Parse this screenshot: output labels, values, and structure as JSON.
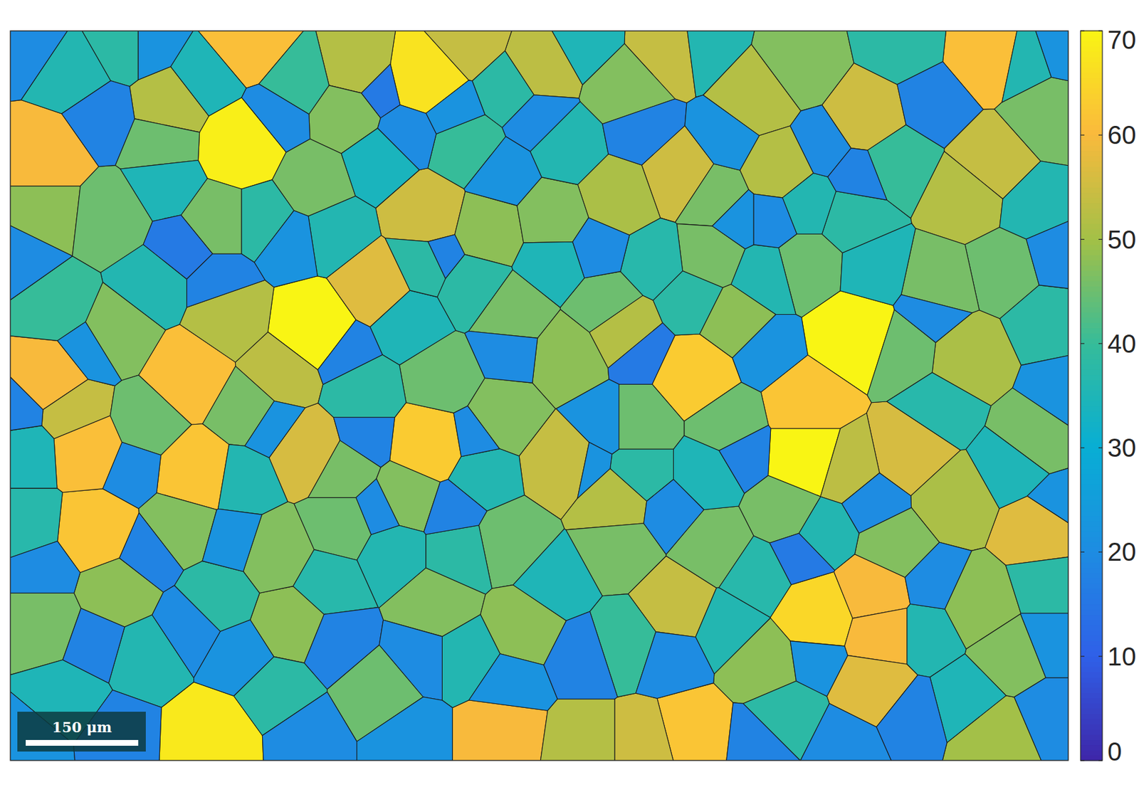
{
  "chart_data": {
    "type": "grain_map",
    "xlim": [
      0,
      1410
    ],
    "ylim": [
      0,
      972
    ],
    "tick_labels": false,
    "colorbar": {
      "range": [
        0,
        70
      ],
      "ticks": [
        0,
        10,
        20,
        30,
        40,
        50,
        60,
        70
      ]
    },
    "scale_bar": {
      "length": 150,
      "label": "150 μm"
    },
    "grains": {
      "x": [
        307,
        404,
        1126,
        1063,
        554,
        268,
        321,
        45,
        1306,
        239,
        113,
        248,
        1078,
        1150,
        1160,
        103,
        913,
        1063,
        656,
        908,
        1374,
        559,
        54,
        1150,
        554,
        486,
        399,
        738,
        1199,
        1141,
        1311,
        893,
        709,
        995,
        888,
        1111,
        816,
        360,
        83,
        292,
        811,
        850,
        762,
        462,
        607,
        879,
        1024,
        1276,
        1257,
        1276,
        214,
        1315,
        806,
        447,
        204,
        45,
        404,
        636,
        796,
        743,
        670,
        820,
        1189,
        1005,
        568,
        666,
        811,
        374,
        442,
        1179,
        1291,
        1383,
        1053,
        1325,
        937,
        656,
        578,
        932,
        966,
        1063,
        142,
        45,
        142,
        229,
        180,
        316,
        530,
        132,
        277,
        723,
        956,
        1364,
        1335,
        491,
        1238,
        685,
        840,
        1034,
        355,
        442,
        937,
        83,
        151,
        258,
        384,
        665,
        743,
        607,
        491,
        336,
        190,
        64,
        210,
        433,
        617,
        530,
        859,
        1005,
        1121,
        1180,
        1364,
        1383,
        1238,
        1335,
        1383,
        1218,
        1276,
        1034,
        956,
        821,
        724,
        598,
        510,
        423,
        277,
        180,
        74,
        355,
        607,
        995,
        927,
        840,
        627,
        471,
        307,
        25,
        25,
        1150,
        1344,
        1189,
        918,
        762,
        1083,
        908,
        1063,
        549,
        724,
        25,
        122,
        180,
        355,
        491,
        588,
        704,
        840,
        956,
        1083,
        1228,
        1403,
        16,
        229,
        374,
        568,
        782,
        966,
        1131,
        1393,
        103,
        442,
        665,
        840,
        1005,
        1228,
        16,
        161,
        345,
        471,
        617,
        792,
        976,
        1150,
        1403,
        45,
        180,
        297,
        491,
        588,
        762,
        879,
        1053,
        1228,
        1393,
        113,
        239,
        307,
        433,
        549,
        665,
        762,
        879,
        1073,
        1199,
        1383,
        25,
        142,
        394,
        530,
        995,
        1111,
        1383,
        1015,
        277,
        530,
        656
      ],
      "y": [
        153,
        396,
        405,
        566,
        61,
        944,
        13,
        168,
        29,
        459,
        667,
        590,
        779,
        750,
        803,
        556,
        459,
        498,
        939,
        939,
        667,
        551,
        464,
        871,
        245,
        338,
        561,
        575,
        561,
        114,
        178,
        192,
        47,
        90,
        764,
        580,
        396,
        454,
        507,
        381,
        221,
        954,
        954,
        47,
        13,
        22,
        182,
        221,
        624,
        435,
        100,
        939,
        628,
        110,
        148,
        240,
        202,
        265,
        367,
        434,
        376,
        76,
        425,
        842,
        764,
        682,
        687,
        789,
        585,
        687,
        764,
        114,
        47,
        318,
        221,
        512,
        464,
        299,
        386,
        313,
        401,
        789,
        745,
        658,
        522,
        503,
        619,
        250,
        250,
        250,
        522,
        541,
        832,
        881,
        337,
        793,
        522,
        638,
        696,
        658,
        687,
        56,
        17,
        66,
        66,
        76,
        153,
        153,
        173,
        250,
        338,
        367,
        202,
        270,
        338,
        386,
        308,
        328,
        250,
        173,
        231,
        386,
        502,
        580,
        735,
        803,
        890,
        910,
        793,
        813,
        735,
        696,
        696,
        735,
        755,
        832,
        890,
        881,
        832,
        726,
        590,
        590,
        590,
        483,
        600,
        658,
        561,
        318,
        37,
        17,
        17,
        17,
        667,
        357,
        231,
        308,
        308,
        17,
        114,
        17,
        114,
        76,
        105,
        114,
        134,
        144,
        153,
        95,
        17,
        299,
        289,
        279,
        299,
        289,
        250,
        192,
        299,
        425,
        425,
        425,
        425,
        425,
        376,
        502,
        580,
        522,
        541,
        541,
        522,
        561,
        628,
        483,
        716,
        696,
        677,
        638,
        638,
        580,
        638,
        696,
        735,
        638,
        813,
        793,
        832,
        813,
        832,
        871,
        832,
        832,
        832,
        910,
        910,
        949,
        939,
        939,
        939,
        949,
        949,
        813,
        250,
        338,
        134,
        192
      ],
      "values": [
        69,
        70,
        70,
        70,
        67,
        68,
        61,
        60,
        61,
        61,
        62,
        62,
        65,
        60,
        60,
        61,
        63,
        62,
        60,
        62,
        57,
        63,
        60,
        57,
        55,
        57,
        56,
        54,
        56,
        55,
        54,
        55,
        53,
        52,
        54,
        53,
        52,
        53,
        54,
        52,
        51,
        55,
        52,
        52,
        54,
        54,
        52,
        52,
        51,
        51,
        52,
        50,
        52,
        47,
        45,
        48,
        46,
        48,
        45,
        48,
        46,
        47,
        45,
        48,
        47,
        45,
        46,
        48,
        46,
        47,
        48,
        46,
        47,
        45,
        46,
        47,
        45,
        46,
        48,
        45,
        47,
        46,
        48,
        47,
        45,
        46,
        47,
        45,
        46,
        47,
        45,
        46,
        47,
        45,
        46,
        48,
        45,
        46,
        47,
        45,
        46,
        36,
        38,
        35,
        40,
        38,
        36,
        40,
        34,
        38,
        36,
        40,
        35,
        36,
        38,
        35,
        37,
        36,
        38,
        40,
        36,
        38,
        37,
        35,
        38,
        36,
        35,
        38,
        36,
        40,
        35,
        38,
        36,
        37,
        38,
        36,
        35,
        38,
        36,
        37,
        35,
        38,
        36,
        38,
        36,
        37,
        35,
        35,
        36,
        38,
        36,
        35,
        36,
        38,
        36,
        38,
        35,
        20,
        18,
        22,
        20,
        16,
        22,
        20,
        18,
        22,
        20,
        18,
        22,
        20,
        16,
        22,
        18,
        20,
        22,
        18,
        20,
        22,
        18,
        20,
        16,
        22,
        20,
        18,
        20,
        22,
        18,
        20,
        22,
        18,
        20,
        22,
        20,
        18,
        22,
        20,
        18,
        22,
        20,
        16,
        20,
        22,
        18,
        20,
        22,
        18,
        20,
        22,
        18,
        20,
        22,
        18,
        20,
        22,
        18,
        20,
        22,
        18,
        20,
        22,
        20,
        18,
        20,
        22
      ]
    }
  }
}
